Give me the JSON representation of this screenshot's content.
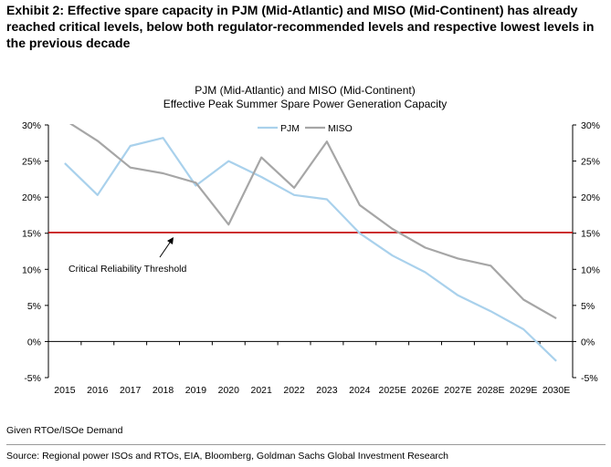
{
  "exhibit_title": "Exhibit 2: Effective spare capacity in PJM (Mid-Atlantic) and MISO (Mid-Continent) has already reached critical levels, below both regulator-recommended levels and respective lowest levels in the previous decade",
  "footnote": "Given RTOe/ISOe Demand",
  "source": "Source: Regional power ISOs and RTOs, EIA, Bloomberg, Goldman Sachs Global Investment Research",
  "chart_data": {
    "type": "line",
    "title": "PJM (Mid-Atlantic) and MISO (Mid-Continent)",
    "subtitle": "Effective Peak Summer Spare Power Generation Capacity",
    "categories": [
      "2015",
      "2016",
      "2017",
      "2018",
      "2019",
      "2020",
      "2021",
      "2022",
      "2023",
      "2024",
      "2025E",
      "2026E",
      "2027E",
      "2028E",
      "2029E",
      "2030E"
    ],
    "series": [
      {
        "name": "PJM",
        "color": "#a9d1ec",
        "values": [
          24.7,
          20.3,
          27.1,
          28.2,
          21.6,
          25.0,
          22.8,
          20.3,
          19.7,
          15.0,
          11.9,
          9.6,
          6.4,
          4.2,
          1.7,
          -2.7
        ]
      },
      {
        "name": "MISO",
        "color": "#a6a6a6",
        "values": [
          30.7,
          27.8,
          24.1,
          23.3,
          22.0,
          16.2,
          25.5,
          21.3,
          27.7,
          18.9,
          15.6,
          13.0,
          11.5,
          10.5,
          5.8,
          3.2
        ]
      }
    ],
    "threshold": {
      "value": 15.1,
      "color": "#c00000",
      "label": "Critical Reliability Threshold"
    },
    "ylim": [
      -5,
      30
    ],
    "yticks": [
      -5,
      0,
      5,
      10,
      15,
      20,
      25,
      30
    ],
    "ytick_labels": [
      "-5%",
      "0%",
      "5%",
      "10%",
      "15%",
      "20%",
      "25%",
      "30%"
    ],
    "secondary_yticks": [
      -5,
      0,
      5,
      10,
      15,
      20,
      25,
      30
    ],
    "secondary_ytick_labels": [
      "-5%",
      "0%",
      "5%",
      "10%",
      "15%",
      "20%",
      "25%",
      "30%"
    ],
    "legend_position": "top-center",
    "grid": false,
    "xlabel": "",
    "ylabel": ""
  }
}
